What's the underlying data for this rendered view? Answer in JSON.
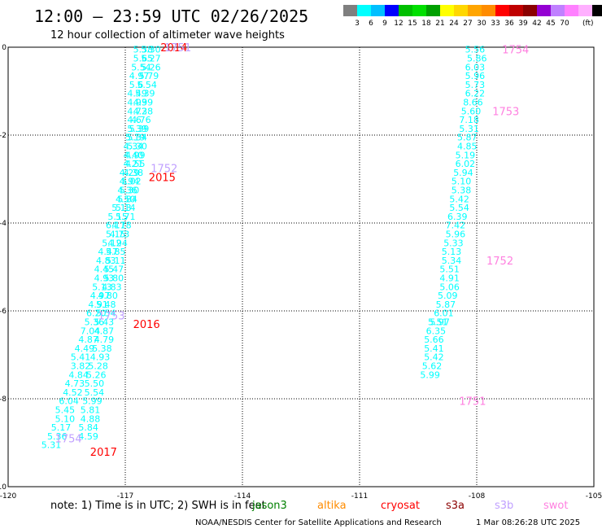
{
  "header": {
    "title": "12:00 – 23:59 UTC 02/26/2025",
    "subtitle": "12 hour collection of altimeter wave heights"
  },
  "colorbar": {
    "colors": [
      "#7f7f7f",
      "#00ffff",
      "#00bfff",
      "#0000ff",
      "#00bf00",
      "#00e000",
      "#00a000",
      "#ffff00",
      "#ffd700",
      "#ffa500",
      "#ff8c00",
      "#ff0000",
      "#c00000",
      "#8b0000",
      "#9400d3",
      "#c080ff",
      "#ff80ff",
      "#ffb0ff",
      "#000000"
    ],
    "labels": [
      "3",
      "6",
      "9",
      "12",
      "15",
      "18",
      "21",
      "24",
      "27",
      "30",
      "33",
      "36",
      "39",
      "42",
      "45",
      "70"
    ],
    "unit": "(ft)"
  },
  "axes": {
    "x_ticks": [
      "-120",
      "-117",
      "-114",
      "-111",
      "-108",
      "-105"
    ],
    "y_ticks": [
      "0",
      "-2",
      "-4",
      "-6",
      "-8",
      "-10"
    ]
  },
  "chart_data": {
    "type": "scatter",
    "x_range": [
      -120,
      -105
    ],
    "y_range": [
      -10,
      0
    ],
    "text_color": "#00ffff",
    "tracks": [
      {
        "points": [
          [
            -116.8,
            -0.05,
            "5.38"
          ],
          [
            -116.8,
            -0.25,
            "5.65"
          ],
          [
            -116.85,
            -0.45,
            "5.54"
          ],
          [
            -116.9,
            -0.65,
            "4.97"
          ],
          [
            -116.9,
            -0.85,
            "5.6"
          ],
          [
            -116.95,
            -1.05,
            "4.49"
          ],
          [
            -116.95,
            -1.25,
            "4.93"
          ],
          [
            -116.95,
            -1.45,
            "4.72"
          ],
          [
            -116.95,
            -1.65,
            "4.6"
          ],
          [
            -116.95,
            -1.85,
            "5.39"
          ],
          [
            -117.0,
            -2.05,
            "5.19"
          ],
          [
            -117.05,
            -2.25,
            "4.34"
          ],
          [
            -117.05,
            -2.45,
            "4.40"
          ],
          [
            -117.05,
            -2.65,
            "4.21"
          ],
          [
            -117.15,
            -2.85,
            "4.29"
          ],
          [
            -117.15,
            -3.05,
            "4.94"
          ],
          [
            -117.2,
            -3.25,
            "4.36"
          ],
          [
            -117.25,
            -3.45,
            "4.50"
          ],
          [
            -117.35,
            -3.65,
            "5.13"
          ],
          [
            -117.45,
            -3.85,
            "5.15"
          ],
          [
            -117.5,
            -4.05,
            "6.11"
          ],
          [
            -117.5,
            -4.25,
            "5.15"
          ],
          [
            -117.6,
            -4.45,
            "5.12"
          ],
          [
            -117.7,
            -4.65,
            "4.47"
          ],
          [
            -117.75,
            -4.85,
            "4.83"
          ],
          [
            -117.8,
            -5.05,
            "4.45"
          ],
          [
            -117.8,
            -5.25,
            "4.93"
          ],
          [
            -117.85,
            -5.45,
            "5.13"
          ],
          [
            -117.9,
            -5.65,
            "4.97"
          ],
          [
            -117.95,
            -5.85,
            "4.91"
          ],
          [
            -118.0,
            -6.05,
            "6.20"
          ],
          [
            -118.05,
            -6.25,
            "5.36"
          ],
          [
            -118.15,
            -6.45,
            "7.04"
          ],
          [
            -118.2,
            -6.65,
            "4.87"
          ],
          [
            -118.3,
            -6.85,
            "4.49"
          ],
          [
            -118.4,
            -7.05,
            "5.41"
          ],
          [
            -118.4,
            -7.25,
            "3.82"
          ],
          [
            -118.45,
            -7.45,
            "4.84"
          ],
          [
            -118.55,
            -7.65,
            "4.73"
          ],
          [
            -118.6,
            -7.85,
            "4.52"
          ],
          [
            -118.7,
            -8.05,
            "6.04"
          ],
          [
            -118.8,
            -8.25,
            "5.45"
          ],
          [
            -118.8,
            -8.45,
            "5.10"
          ],
          [
            -118.9,
            -8.65,
            "5.17"
          ],
          [
            -119.0,
            -8.85,
            "5.36"
          ],
          [
            -119.15,
            -9.05,
            "5.31"
          ]
        ]
      },
      {
        "points": [
          [
            -116.6,
            -0.05,
            "5.30"
          ],
          [
            -116.6,
            -0.25,
            "5.27"
          ],
          [
            -116.6,
            -0.45,
            "5.26"
          ],
          [
            -116.65,
            -0.65,
            "5.79"
          ],
          [
            -116.7,
            -0.85,
            "5.54"
          ],
          [
            -116.75,
            -1.05,
            "5.39"
          ],
          [
            -116.8,
            -1.25,
            "4.99"
          ],
          [
            -116.8,
            -1.45,
            "4.38"
          ],
          [
            -116.85,
            -1.65,
            "4.76"
          ],
          [
            -116.9,
            -1.85,
            "5.39"
          ],
          [
            -116.95,
            -2.05,
            "5.34"
          ],
          [
            -116.95,
            -2.25,
            "5.30"
          ],
          [
            -117.0,
            -2.45,
            "4.99"
          ],
          [
            -117.0,
            -2.65,
            "4.55"
          ],
          [
            -117.05,
            -2.85,
            "4.38"
          ],
          [
            -117.1,
            -3.05,
            "5.02"
          ],
          [
            -117.15,
            -3.25,
            "5.30"
          ],
          [
            -117.2,
            -3.45,
            "5.84"
          ],
          [
            -117.25,
            -3.65,
            "5.14"
          ],
          [
            -117.25,
            -3.85,
            "5.71"
          ],
          [
            -117.35,
            -4.05,
            "4.78"
          ],
          [
            -117.4,
            -4.25,
            "4.73"
          ],
          [
            -117.45,
            -4.45,
            "4.94"
          ],
          [
            -117.5,
            -4.65,
            "5.85"
          ],
          [
            -117.5,
            -4.85,
            "5.11"
          ],
          [
            -117.55,
            -5.05,
            "5.47"
          ],
          [
            -117.55,
            -5.25,
            "5.80"
          ],
          [
            -117.6,
            -5.45,
            "4.83"
          ],
          [
            -117.7,
            -5.65,
            "4.80"
          ],
          [
            -117.75,
            -5.85,
            "5.48"
          ],
          [
            -117.75,
            -6.05,
            "5.54"
          ],
          [
            -117.8,
            -6.25,
            "5.43"
          ],
          [
            -117.8,
            -6.45,
            "4.87"
          ],
          [
            -117.8,
            -6.65,
            "4.79"
          ],
          [
            -117.85,
            -6.85,
            "5.38"
          ],
          [
            -117.9,
            -7.05,
            "4.93"
          ],
          [
            -117.95,
            -7.25,
            "5.28"
          ],
          [
            -118.0,
            -7.45,
            "5.26"
          ],
          [
            -118.05,
            -7.65,
            "5.50"
          ],
          [
            -118.05,
            -7.85,
            "5.54"
          ],
          [
            -118.1,
            -8.05,
            "5.99"
          ],
          [
            -118.15,
            -8.25,
            "5.81"
          ],
          [
            -118.15,
            -8.45,
            "4.88"
          ],
          [
            -118.2,
            -8.65,
            "5.84"
          ],
          [
            -118.2,
            -8.85,
            "4.59"
          ]
        ]
      },
      {
        "points": [
          [
            -108.3,
            -0.05,
            "5.56"
          ],
          [
            -108.25,
            -0.25,
            "5.86"
          ],
          [
            -108.3,
            -0.45,
            "6.03"
          ],
          [
            -108.3,
            -0.65,
            "5.96"
          ],
          [
            -108.3,
            -0.85,
            "5.73"
          ],
          [
            -108.3,
            -1.05,
            "6.22"
          ],
          [
            -108.35,
            -1.25,
            "8.66"
          ],
          [
            -108.4,
            -1.45,
            "5.60"
          ],
          [
            -108.45,
            -1.65,
            "7.18"
          ],
          [
            -108.45,
            -1.85,
            "5.31"
          ],
          [
            -108.5,
            -2.05,
            "5.87"
          ],
          [
            -108.5,
            -2.25,
            "4.85"
          ],
          [
            -108.55,
            -2.45,
            "5.19"
          ],
          [
            -108.55,
            -2.65,
            "6.02"
          ],
          [
            -108.6,
            -2.85,
            "5.94"
          ],
          [
            -108.65,
            -3.05,
            "5.10"
          ],
          [
            -108.65,
            -3.25,
            "5.38"
          ],
          [
            -108.7,
            -3.45,
            "5.42"
          ],
          [
            -108.7,
            -3.65,
            "5.54"
          ],
          [
            -108.75,
            -3.85,
            "6.39"
          ],
          [
            -108.8,
            -4.05,
            "7.42"
          ],
          [
            -108.8,
            -4.25,
            "5.96"
          ],
          [
            -108.85,
            -4.45,
            "5.33"
          ],
          [
            -108.9,
            -4.65,
            "5.13"
          ],
          [
            -108.9,
            -4.85,
            "5.34"
          ],
          [
            -108.95,
            -5.05,
            "5.51"
          ],
          [
            -108.95,
            -5.25,
            "4.91"
          ],
          [
            -108.95,
            -5.45,
            "5.06"
          ],
          [
            -109.0,
            -5.65,
            "5.09"
          ],
          [
            -109.05,
            -5.85,
            "5.87"
          ],
          [
            -109.1,
            -6.05,
            "6.01"
          ],
          [
            -109.2,
            -6.25,
            "5.97"
          ],
          [
            -109.3,
            -6.45,
            "6.35"
          ],
          [
            -109.35,
            -6.65,
            "5.66"
          ],
          [
            -109.35,
            -6.85,
            "5.41"
          ],
          [
            -109.35,
            -7.05,
            "5.42"
          ],
          [
            -109.4,
            -7.25,
            "5.62"
          ],
          [
            -109.45,
            -7.45,
            "5.99"
          ]
        ]
      }
    ],
    "extra_points": [
      [
        -109.25,
        -6.25,
        "5.51"
      ]
    ],
    "time_labels": [
      {
        "x": -116.1,
        "y": 0.0,
        "text": "2014",
        "color": "#ff0000"
      },
      {
        "x": -116.0,
        "y": 0.0,
        "text": "1751",
        "color": "#c0a0ff"
      },
      {
        "x": -116.35,
        "y": -2.75,
        "text": "1752",
        "color": "#c0a0ff"
      },
      {
        "x": -116.4,
        "y": -2.95,
        "text": "2015",
        "color": "#ff0000"
      },
      {
        "x": -117.7,
        "y": -6.1,
        "text": "1753",
        "color": "#c0a0ff"
      },
      {
        "x": -116.8,
        "y": -6.3,
        "text": "2016",
        "color": "#ff0000"
      },
      {
        "x": -118.8,
        "y": -8.9,
        "text": "1754",
        "color": "#c0a0ff"
      },
      {
        "x": -117.9,
        "y": -9.2,
        "text": "2017",
        "color": "#ff0000"
      },
      {
        "x": -107.35,
        "y": -0.05,
        "text": "1754",
        "color": "#ff80e0"
      },
      {
        "x": -107.6,
        "y": -1.45,
        "text": "1753",
        "color": "#ff80e0"
      },
      {
        "x": -107.75,
        "y": -4.85,
        "text": "1752",
        "color": "#ff80e0"
      },
      {
        "x": -108.45,
        "y": -8.05,
        "text": "1751",
        "color": "#ff80e0"
      }
    ]
  },
  "note": {
    "text": "note:  1) Time is in UTC; 2) SWH is in feet",
    "satellites": [
      {
        "name": "jason3",
        "color": "#008000"
      },
      {
        "name": "altika",
        "color": "#ff8c00"
      },
      {
        "name": "cryosat",
        "color": "#ff0000"
      },
      {
        "name": "s3a",
        "color": "#8b0000"
      },
      {
        "name": "s3b",
        "color": "#c0a0ff"
      },
      {
        "name": "swot",
        "color": "#ff80e0"
      }
    ]
  },
  "footer": {
    "credit": "NOAA/NESDIS Center for Satellite Applications and Research",
    "timestamp": "1 Mar 08:26:28 UTC 2025"
  }
}
